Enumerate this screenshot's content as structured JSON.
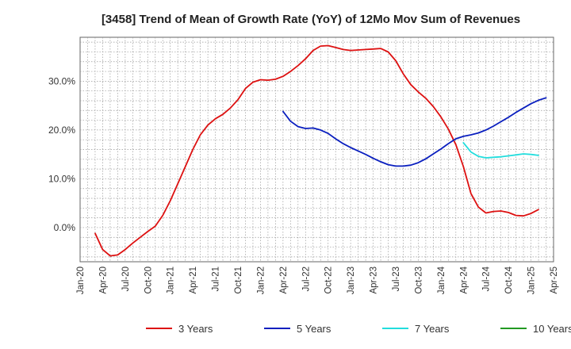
{
  "chart_data": {
    "type": "line",
    "title": "[3458]  Trend of Mean of Growth Rate (YoY) of 12Mo Mov Sum of Revenues",
    "xlabel": "",
    "ylabel": "",
    "ylim": [
      -7,
      39
    ],
    "y_ticks": [
      0,
      10,
      20,
      30
    ],
    "y_tick_labels": [
      "0.0%",
      "10.0%",
      "20.0%",
      "30.0%"
    ],
    "x_tick_labels": [
      "Jan-20",
      "Apr-20",
      "Jul-20",
      "Oct-20",
      "Jan-21",
      "Apr-21",
      "Jul-21",
      "Oct-21",
      "Jan-22",
      "Apr-22",
      "Jul-22",
      "Oct-22",
      "Jan-23",
      "Apr-23",
      "Jul-23",
      "Oct-23",
      "Jan-24",
      "Apr-24",
      "Jul-24",
      "Oct-24",
      "Jan-25",
      "Apr-25"
    ],
    "grid": true,
    "legend_position": "bottom",
    "series": [
      {
        "name": "3 Years",
        "color": "#dd1111",
        "start_month": 2,
        "values": [
          -1.2,
          -4.5,
          -5.8,
          -5.6,
          -4.5,
          -3.2,
          -2.0,
          -0.8,
          0.3,
          2.5,
          5.5,
          9.0,
          12.5,
          16.0,
          19.0,
          21.0,
          22.3,
          23.2,
          24.5,
          26.2,
          28.5,
          29.8,
          30.3,
          30.2,
          30.4,
          31.0,
          32.0,
          33.2,
          34.6,
          36.3,
          37.2,
          37.3,
          36.9,
          36.5,
          36.3,
          36.4,
          36.5,
          36.6,
          36.7,
          36.0,
          34.2,
          31.5,
          29.3,
          27.8,
          26.5,
          24.8,
          22.7,
          20.2,
          17.0,
          12.5,
          7.0,
          4.2,
          3.0,
          3.3,
          3.4,
          3.1,
          2.5,
          2.4,
          2.9,
          3.7
        ]
      },
      {
        "name": "5 Years",
        "color": "#0a1fbf",
        "start_month": 27,
        "values": [
          23.8,
          21.8,
          20.7,
          20.3,
          20.4,
          20.0,
          19.3,
          18.2,
          17.2,
          16.4,
          15.7,
          15.0,
          14.2,
          13.5,
          12.9,
          12.6,
          12.6,
          12.8,
          13.3,
          14.1,
          15.1,
          16.1,
          17.2,
          18.2,
          18.7,
          19.0,
          19.4,
          20.0,
          20.8,
          21.7,
          22.6,
          23.6,
          24.5,
          25.4,
          26.1,
          26.6
        ]
      },
      {
        "name": "7 Years",
        "color": "#22dddd",
        "start_month": 51,
        "values": [
          17.4,
          15.5,
          14.6,
          14.3,
          14.4,
          14.5,
          14.7,
          14.9,
          15.1,
          15.0,
          14.8
        ]
      },
      {
        "name": "10 Years",
        "color": "#229922",
        "start_month": 0,
        "values": []
      }
    ]
  }
}
